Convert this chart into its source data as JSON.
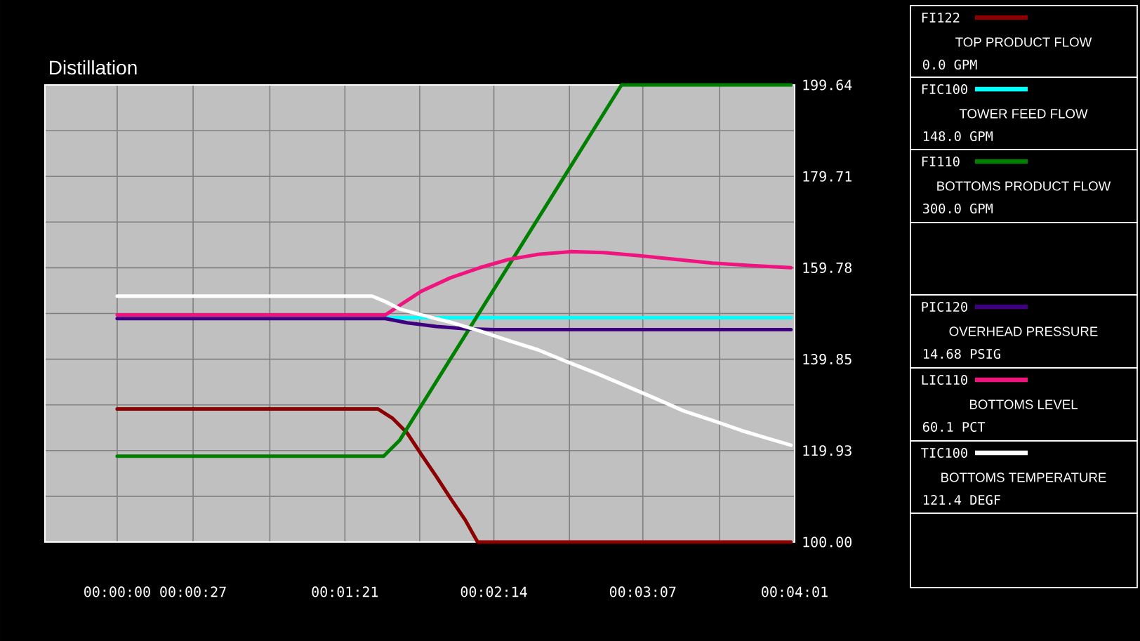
{
  "chart_data": {
    "type": "line",
    "title": "Distillation",
    "xlim": [
      -0.00714,
      0.06694
    ],
    "xticks": [
      {
        "value": 0,
        "label": "00:00:00"
      },
      {
        "value": 0.0075,
        "label": "00:00:27"
      },
      {
        "value": 0.01508,
        "label": null
      },
      {
        "value": 0.0225,
        "label": "00:01:21"
      },
      {
        "value": 0.02989,
        "label": null
      },
      {
        "value": 0.03722,
        "label": "00:02:14"
      },
      {
        "value": 0.04469,
        "label": null
      },
      {
        "value": 0.05194,
        "label": "00:03:07"
      },
      {
        "value": 0.05953,
        "label": null
      },
      {
        "value": 0.06694,
        "label": "00:04:01"
      }
    ],
    "ylim": [
      100,
      199.64
    ],
    "yticks": [
      {
        "value": 100,
        "label": "100.00"
      },
      {
        "value": 109.96,
        "label": null
      },
      119.93,
      {
        "value": 129.89,
        "label": null
      },
      139.85,
      {
        "value": 149.82,
        "label": null
      },
      159.78,
      {
        "value": 169.75,
        "label": null
      },
      179.71,
      {
        "value": 189.68,
        "label": null
      },
      199.64
    ],
    "grid": true,
    "legend": "right",
    "series": [
      {
        "name": "FI122",
        "color": "#8b0000",
        "x": [
          0,
          0.02578,
          0.02719,
          0.02864,
          0.03008,
          0.03153,
          0.03294,
          0.03439,
          0.03561,
          0.06658
        ],
        "values": [
          129.0,
          129.0,
          127.0,
          123.8,
          119.0,
          114.3,
          109.5,
          104.8,
          100,
          100
        ]
      },
      {
        "name": "FIC100",
        "color": "#00ffff",
        "x": [
          0.0265,
          0.06658
        ],
        "values": [
          148.9,
          148.9
        ]
      },
      {
        "name": "FI110",
        "color": "#008000",
        "x": [
          0,
          0.02633,
          0.02792,
          0.04983,
          0.06658
        ],
        "values": [
          118.7,
          118.7,
          122.2,
          199.64,
          199.64
        ]
      },
      {
        "name": "PIC120",
        "color": "#3f0080",
        "x": [
          0,
          0.0265,
          0.02864,
          0.03153,
          0.03439,
          0.03728,
          0.06658
        ],
        "values": [
          148.7,
          148.7,
          147.8,
          147.0,
          146.5,
          146.3,
          146.3
        ]
      },
      {
        "name": "LIC110",
        "color": "#f0147f",
        "x": [
          0,
          0.0265,
          0.02792,
          0.03008,
          0.03294,
          0.03583,
          0.03869,
          0.04158,
          0.04481,
          0.04806,
          0.05164,
          0.05522,
          0.05883,
          0.06242,
          0.06658
        ],
        "values": [
          149.5,
          149.5,
          151.6,
          154.7,
          157.6,
          159.8,
          161.6,
          162.7,
          163.3,
          163.1,
          162.4,
          161.6,
          160.8,
          160.3,
          159.8
        ]
      },
      {
        "name": "TIC100",
        "color": "#ffffff",
        "x": [
          0,
          0.02519,
          0.0265,
          0.02792,
          0.03008,
          0.03294,
          0.03583,
          0.03869,
          0.04158,
          0.04444,
          0.04733,
          0.05019,
          0.05308,
          0.05594,
          0.05883,
          0.06169,
          0.06458,
          0.06658
        ],
        "values": [
          153.6,
          153.6,
          152.4,
          150.8,
          149.5,
          147.9,
          146.0,
          143.9,
          141.9,
          139.3,
          136.8,
          134.1,
          131.4,
          128.6,
          126.5,
          124.3,
          122.4,
          121.1
        ]
      }
    ],
    "annotations": [
      "TOP PRODUCT  FLOW",
      "0.0 GPM",
      "TOWER FEED FLOW",
      "148.0 GPM",
      "BOTTOMS PRODUCT FLOW",
      "300.0 GPM",
      "OVERHEAD PRESSURE",
      "14.68 PSIG",
      "BOTTOMS LEVEL",
      "60.1 PCT",
      "BOTTOMS TEMPERATURE",
      "121.4 DEGF"
    ]
  }
}
